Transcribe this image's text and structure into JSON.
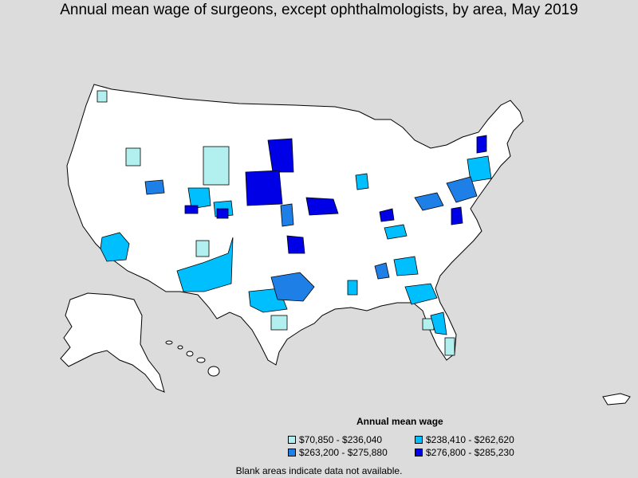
{
  "title": "Annual mean wage of surgeons, except ophthalmologists, by area, May 2019",
  "legend": {
    "title": "Annual mean wage",
    "items": [
      {
        "label": "$70,850 - $236,040",
        "color": "#b2f0f0"
      },
      {
        "label": "$238,410 - $262,620",
        "color": "#00bfff"
      },
      {
        "label": "$263,200 - $275,880",
        "color": "#1e7fe6"
      },
      {
        "label": "$276,800 - $285,230",
        "color": "#0000e6"
      }
    ]
  },
  "footnote": "Blank areas indicate data not available.",
  "colors": {
    "background": "#dcdcdc",
    "land": "#ffffff",
    "border": "#000000"
  }
}
